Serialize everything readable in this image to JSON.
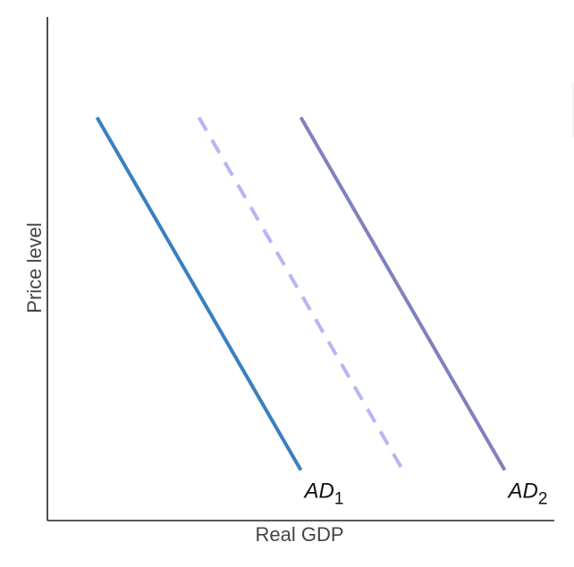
{
  "chart_data": {
    "type": "line",
    "title": "",
    "xlabel": "Real GDP",
    "ylabel": "Price level",
    "xlim": [
      0,
      10
    ],
    "ylim": [
      0,
      10
    ],
    "grid": false,
    "legend": "none",
    "series": [
      {
        "name": "AD1",
        "label_main": "AD",
        "label_sub": "1",
        "color": "#3a7fc0",
        "style": "solid",
        "points": [
          [
            1.0,
            8.0
          ],
          [
            5.0,
            1.0
          ]
        ]
      },
      {
        "name": "",
        "label_main": "",
        "label_sub": "",
        "color": "#b6b7f1",
        "style": "dashed",
        "points": [
          [
            3.0,
            8.0
          ],
          [
            7.0,
            1.0
          ]
        ]
      },
      {
        "name": "AD2",
        "label_main": "AD",
        "label_sub": "2",
        "color": "#8081bd",
        "style": "solid",
        "points": [
          [
            5.0,
            8.0
          ],
          [
            9.0,
            1.0
          ]
        ]
      }
    ]
  }
}
